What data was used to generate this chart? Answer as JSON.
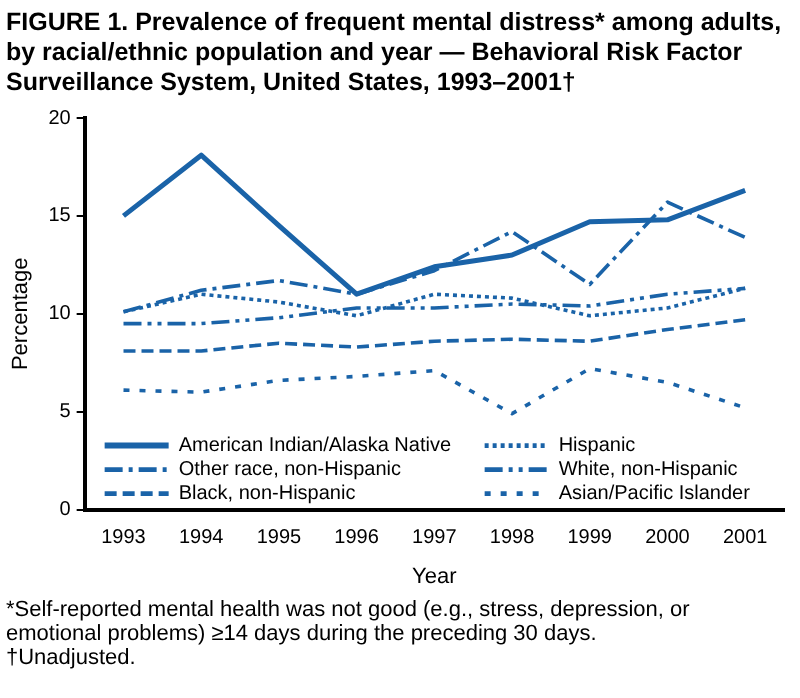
{
  "chart_data": {
    "type": "line",
    "title": "FIGURE 1. Prevalence of frequent mental distress* among adults, by racial/ethnic population and year — Behavioral Risk Factor Surveillance System, United States, 1993–2001†",
    "xlabel": "Year",
    "ylabel": "Percentage",
    "categories": [
      "1993",
      "1994",
      "1995",
      "1996",
      "1997",
      "1998",
      "1999",
      "2000",
      "2001"
    ],
    "ylim": [
      0,
      20
    ],
    "yticks": [
      0,
      5,
      10,
      15,
      20
    ],
    "grid": false,
    "legend": "bottom",
    "marker": "none",
    "series": [
      {
        "name": "American Indian/Alaska Native",
        "color": "#1a63a8",
        "line_style": "solid",
        "values": [
          15.0,
          18.1,
          14.5,
          11.0,
          12.4,
          13.0,
          14.7,
          14.8,
          16.3
        ]
      },
      {
        "name": "Hispanic",
        "color": "#1a63a8",
        "line_style": "dotted",
        "values": [
          10.1,
          11.0,
          10.6,
          9.9,
          11.0,
          10.8,
          9.9,
          10.3,
          11.3
        ]
      },
      {
        "name": "Other race, non-Hispanic",
        "color": "#1a63a8",
        "line_style": "dashdot",
        "values": [
          10.1,
          11.2,
          11.7,
          11.0,
          12.2,
          14.2,
          11.5,
          15.7,
          13.9
        ]
      },
      {
        "name": "White, non-Hispanic",
        "color": "#1a63a8",
        "line_style": "dashdotdot",
        "values": [
          9.5,
          9.5,
          9.8,
          10.3,
          10.3,
          10.5,
          10.4,
          11.0,
          11.3
        ]
      },
      {
        "name": "Black, non-Hispanic",
        "color": "#1a63a8",
        "line_style": "dashed",
        "values": [
          8.1,
          8.1,
          8.5,
          8.3,
          8.6,
          8.7,
          8.6,
          9.2,
          9.7
        ]
      },
      {
        "name": "Asian/Pacific Islander",
        "color": "#1a63a8",
        "line_style": "loosedotted",
        "values": [
          6.1,
          6.0,
          6.6,
          6.8,
          7.1,
          4.9,
          7.2,
          6.5,
          5.2
        ]
      }
    ],
    "annotations": [
      "*Self-reported mental health was not good (e.g., stress, depression, or emotional problems) ≥14 days during the preceding 30 days.",
      "†Unadjusted."
    ]
  }
}
